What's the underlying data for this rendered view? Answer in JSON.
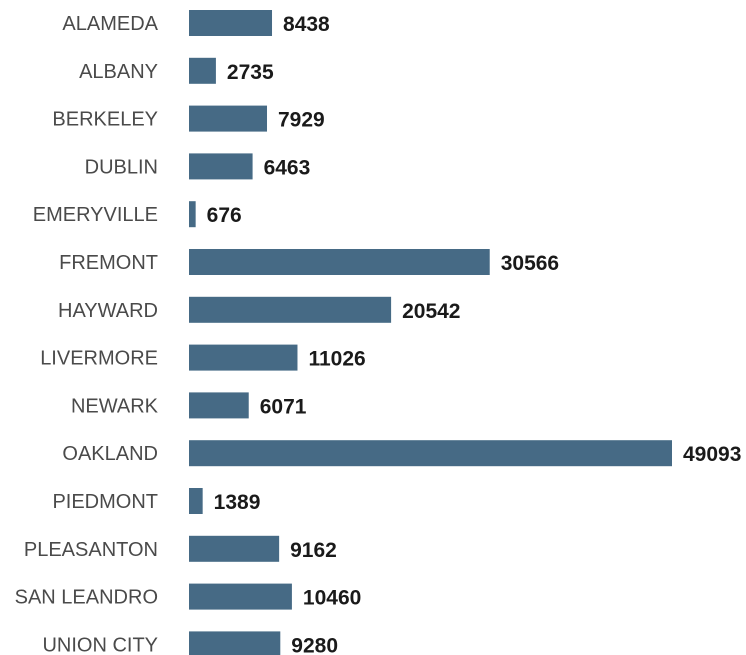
{
  "chart_data": {
    "type": "bar",
    "orientation": "horizontal",
    "categories": [
      "ALAMEDA",
      "ALBANY",
      "BERKELEY",
      "DUBLIN",
      "EMERYVILLE",
      "FREMONT",
      "HAYWARD",
      "LIVERMORE",
      "NEWARK",
      "OAKLAND",
      "PIEDMONT",
      "PLEASANTON",
      "SAN LEANDRO",
      "UNION CITY"
    ],
    "values": [
      8438,
      2735,
      7929,
      6463,
      676,
      30566,
      20542,
      11026,
      6071,
      49093,
      1389,
      9162,
      10460,
      9280
    ],
    "value_labels": [
      "8438",
      "2735",
      "7929",
      "6463",
      "676",
      "30566",
      "20542",
      "11026",
      "6071",
      "49093",
      "1389",
      "9162",
      "10460",
      "9280"
    ],
    "xlim": [
      0,
      49093
    ],
    "grid": false,
    "legend": "none",
    "bar_color": "#466a85",
    "category_label_color": "#4a4a4a",
    "value_label_color": "#1a1a1a"
  }
}
